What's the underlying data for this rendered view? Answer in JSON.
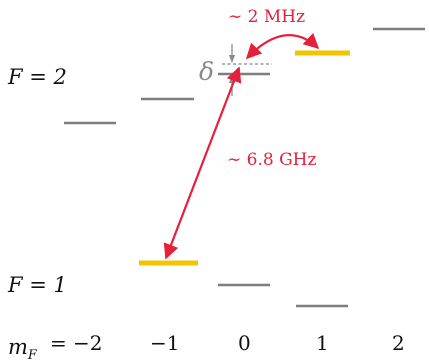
{
  "labels": {
    "f2": "F = 2",
    "f1": "F = 1",
    "mf_name": "m",
    "mf_sub": "F",
    "mf_eq": "=",
    "mf_values": [
      "−2",
      "−1",
      "0",
      "1",
      "2"
    ],
    "delta": "δ",
    "small_transition": "∼ 2 MHz",
    "large_transition": "∼ 6.8 GHz"
  },
  "colors": {
    "level": "#7d7d7d",
    "highlight_level": "#f5c400",
    "transition": "#e5203a",
    "detuning_marker": "#8a8a8a"
  }
}
